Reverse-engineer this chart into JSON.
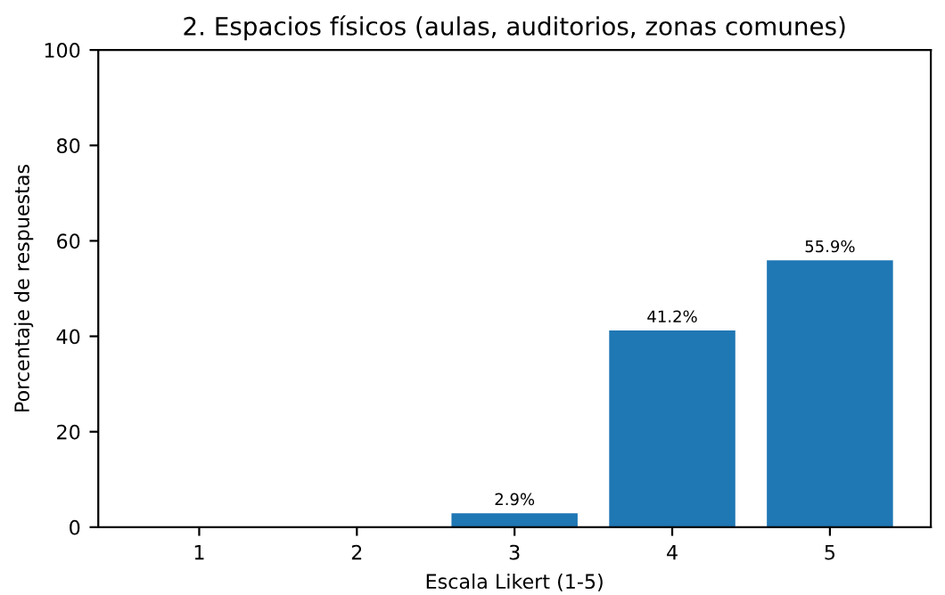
{
  "chart_data": {
    "type": "bar",
    "title": "2. Espacios físicos (aulas, auditorios, zonas comunes)",
    "xlabel": "Escala Likert (1-5)",
    "ylabel": "Porcentaje de respuestas",
    "categories": [
      "1",
      "2",
      "3",
      "4",
      "5"
    ],
    "values": [
      0,
      0,
      2.9,
      41.2,
      55.9
    ],
    "value_labels": [
      null,
      null,
      "2.9%",
      "41.2%",
      "55.9%"
    ],
    "color": "#1f77b4",
    "ylim": [
      0,
      100
    ],
    "yticks": [
      0,
      20,
      40,
      60,
      80,
      100
    ],
    "grid": false,
    "legend": false
  }
}
